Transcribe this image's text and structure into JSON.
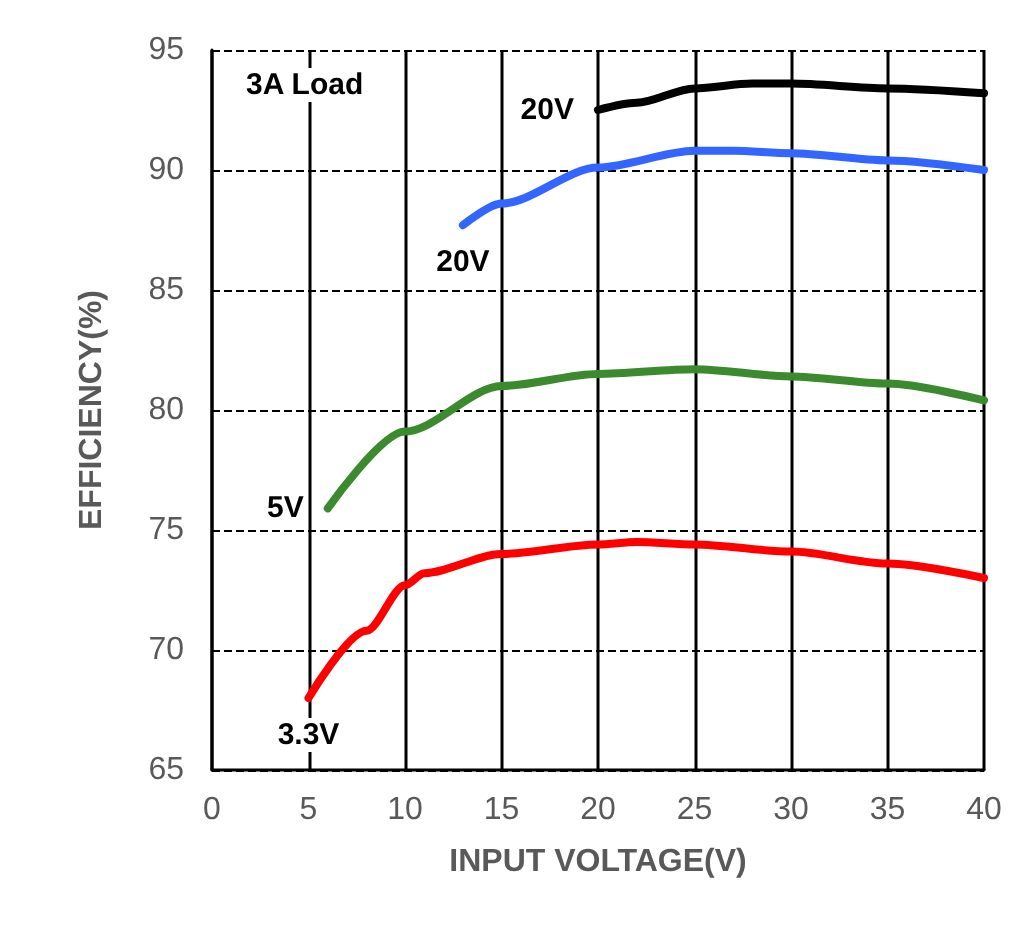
{
  "chart_data": {
    "type": "line",
    "xlabel": "INPUT VOLTAGE(V)",
    "ylabel": "EFFICIENCY(%)",
    "xlim": [
      0,
      40
    ],
    "xticks": [
      0,
      5,
      10,
      15,
      20,
      25,
      30,
      35,
      40
    ],
    "ylim": [
      65,
      95
    ],
    "yticks": [
      65,
      70,
      75,
      80,
      85,
      90,
      95
    ],
    "grid": true,
    "legend": false,
    "marker": "none",
    "line_style": "solid",
    "annotations": [
      "3A Load"
    ],
    "series": [
      {
        "name": "20V",
        "color": "#000000",
        "x": [
          20,
          22,
          25,
          28,
          30,
          35,
          40
        ],
        "values": [
          92.5,
          92.8,
          93.4,
          93.6,
          93.6,
          93.4,
          93.2
        ]
      },
      {
        "name": "20V",
        "color": "#3366ff",
        "x": [
          13,
          15,
          20,
          25,
          27,
          30,
          35,
          40
        ],
        "values": [
          87.7,
          88.6,
          90.1,
          90.8,
          90.8,
          90.7,
          90.4,
          90.0
        ]
      },
      {
        "name": "5V",
        "color": "#3c8a2e",
        "x": [
          6,
          10,
          15,
          20,
          25,
          30,
          35,
          40
        ],
        "values": [
          75.9,
          79.1,
          81.0,
          81.5,
          81.7,
          81.4,
          81.1,
          80.4
        ]
      },
      {
        "name": "3.3V",
        "color": "#ff0000",
        "x": [
          5,
          8,
          10,
          11,
          15,
          20,
          22,
          25,
          30,
          35,
          40
        ],
        "values": [
          68.0,
          70.8,
          72.7,
          73.2,
          74.0,
          74.4,
          74.5,
          74.4,
          74.1,
          73.6,
          73.0
        ]
      }
    ]
  }
}
